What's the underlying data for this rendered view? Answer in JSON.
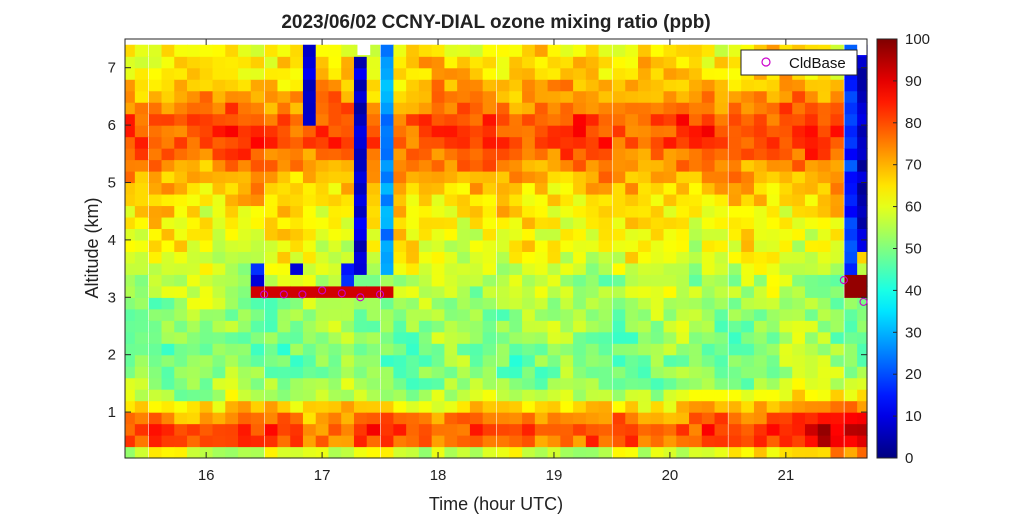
{
  "chart_data": {
    "type": "heatmap",
    "title": "2023/06/02 CCNY-DIAL ozone mixing ratio (ppb)",
    "xlabel": "Time (hour UTC)",
    "ylabel": "Altitude (km)",
    "xlim": [
      15.3,
      21.7
    ],
    "ylim": [
      0.2,
      7.5
    ],
    "x_ticks": [
      16,
      17,
      18,
      19,
      20,
      21
    ],
    "y_ticks": [
      1,
      2,
      3,
      4,
      5,
      6,
      7
    ],
    "colorbar": {
      "label": "",
      "range": [
        0,
        100
      ],
      "ticks": [
        0,
        10,
        20,
        30,
        40,
        50,
        60,
        70,
        80,
        90,
        100
      ],
      "colormap": "jet"
    },
    "legend": {
      "position": "top-right",
      "entries": [
        {
          "name": "CldBase",
          "marker": "circle",
          "color": "#cc00cc"
        }
      ]
    },
    "grid": false,
    "time_columns": [
      15.33,
      15.44,
      15.56,
      15.67,
      15.78,
      15.89,
      16.0,
      16.11,
      16.22,
      16.33,
      16.44,
      16.56,
      16.67,
      16.78,
      16.89,
      17.0,
      17.11,
      17.22,
      17.33,
      17.44,
      17.56,
      17.67,
      17.78,
      17.89,
      18.0,
      18.11,
      18.22,
      18.33,
      18.44,
      18.56,
      18.67,
      18.78,
      18.89,
      19.0,
      19.11,
      19.22,
      19.33,
      19.44,
      19.56,
      19.67,
      19.78,
      19.89,
      20.0,
      20.11,
      20.22,
      20.33,
      20.44,
      20.56,
      20.67,
      20.78,
      20.89,
      21.0,
      21.11,
      21.22,
      21.33,
      21.44,
      21.56,
      21.67
    ],
    "altitude_levels_km": [
      0.3,
      0.5,
      0.7,
      0.9,
      1.1,
      1.3,
      1.5,
      1.7,
      1.9,
      2.1,
      2.3,
      2.5,
      2.7,
      2.9,
      3.1,
      3.3,
      3.5,
      3.7,
      3.9,
      4.1,
      4.3,
      4.5,
      4.7,
      4.9,
      5.1,
      5.3,
      5.5,
      5.7,
      5.9,
      6.1,
      6.3,
      6.5,
      6.7,
      6.9,
      7.1,
      7.3
    ],
    "ozone_profile_typical_ppb": [
      58,
      78,
      80,
      74,
      66,
      56,
      52,
      50,
      50,
      50,
      51,
      52,
      52,
      53,
      55,
      54,
      58,
      60,
      61,
      62,
      63,
      64,
      66,
      68,
      70,
      74,
      78,
      80,
      81,
      80,
      76,
      72,
      69,
      67,
      66,
      64
    ],
    "boundary_layer_increase_after_20_5h_ppb": 14,
    "low_ozone_columns": [
      {
        "time": 16.44,
        "alt_range_km": [
          3.3,
          3.6
        ],
        "value_ppb": 8
      },
      {
        "time": 16.78,
        "alt_range_km": [
          3.4,
          3.6
        ],
        "value_ppb": 5
      },
      {
        "time": 16.89,
        "alt_range_km": [
          6.0,
          7.5
        ],
        "value_ppb": 5
      },
      {
        "time": 17.2,
        "alt_range_km": [
          3.3,
          3.6
        ],
        "value_ppb": 8
      },
      {
        "time": 17.33,
        "alt_range_km": [
          3.4,
          7.2
        ],
        "value_ppb": 3
      },
      {
        "time": 17.56,
        "alt_range_km": [
          3.5,
          7.5
        ],
        "value_ppb": 22
      },
      {
        "time": 21.56,
        "alt_range_km": [
          3.5,
          7.5
        ],
        "value_ppb": 12
      },
      {
        "time": 21.67,
        "alt_range_km": [
          3.9,
          7.5
        ],
        "value_ppb": 2
      }
    ],
    "high_ozone_bands": [
      {
        "time_range": [
          16.4,
          17.65
        ],
        "alt_range_km": [
          3.0,
          3.25
        ],
        "value_ppb": 92
      },
      {
        "time_range": [
          21.5,
          21.7
        ],
        "alt_range_km": [
          3.0,
          3.4
        ],
        "value_ppb": 98
      }
    ],
    "cloud_base": {
      "name": "CldBase",
      "x": [
        16.5,
        16.67,
        16.83,
        17.0,
        17.17,
        17.33,
        17.5,
        21.5,
        21.67
      ],
      "y": [
        3.05,
        3.05,
        3.05,
        3.12,
        3.07,
        3.0,
        3.05,
        3.3,
        2.92
      ]
    }
  }
}
